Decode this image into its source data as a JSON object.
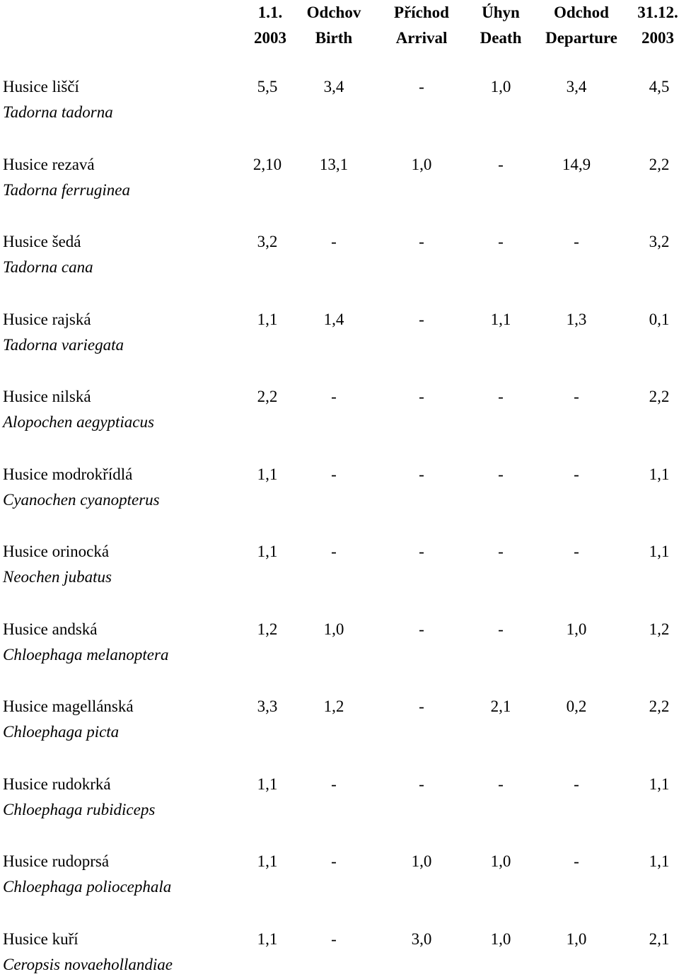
{
  "header": {
    "columns": [
      {
        "line1": "1.1.",
        "line2": "2003"
      },
      {
        "line1": "Odchov",
        "line2": "Birth"
      },
      {
        "line1": "Příchod",
        "line2": "Arrival"
      },
      {
        "line1": "Úhyn",
        "line2": "Death"
      },
      {
        "line1": "Odchod",
        "line2": "Departure"
      },
      {
        "line1": "31.12.",
        "line2": "2003"
      }
    ]
  },
  "rows": [
    {
      "name": "Husice liščí",
      "latin": "Tadorna tadorna",
      "values": [
        "5,5",
        "3,4",
        "-",
        "1,0",
        "3,4",
        "4,5"
      ]
    },
    {
      "name": "Husice rezavá",
      "latin": "Tadorna ferruginea",
      "values": [
        "2,10",
        "13,1",
        "1,0",
        "-",
        "14,9",
        "2,2"
      ]
    },
    {
      "name": "Husice šedá",
      "latin": "Tadorna cana",
      "values": [
        "3,2",
        "-",
        "-",
        "-",
        "-",
        "3,2"
      ]
    },
    {
      "name": "Husice rajská",
      "latin": "Tadorna variegata",
      "values": [
        "1,1",
        "1,4",
        "-",
        "1,1",
        "1,3",
        "0,1"
      ]
    },
    {
      "name": "Husice nilská",
      "latin": "Alopochen aegyptiacus",
      "values": [
        "2,2",
        "-",
        "-",
        "-",
        "-",
        "2,2"
      ]
    },
    {
      "name": "Husice modrokřídlá",
      "latin": "Cyanochen cyanopterus",
      "values": [
        "1,1",
        "-",
        "-",
        "-",
        "-",
        "1,1"
      ]
    },
    {
      "name": "Husice orinocká",
      "latin": "Neochen jubatus",
      "values": [
        "1,1",
        "-",
        "-",
        "-",
        "-",
        "1,1"
      ]
    },
    {
      "name": "Husice andská",
      "latin": "Chloephaga melanoptera",
      "values": [
        "1,2",
        "1,0",
        "-",
        "-",
        "1,0",
        "1,2"
      ]
    },
    {
      "name": "Husice magellánská",
      "latin": "Chloephaga picta",
      "values": [
        "3,3",
        "1,2",
        "-",
        "2,1",
        "0,2",
        "2,2"
      ]
    },
    {
      "name": "Husice rudokrká",
      "latin": "Chloephaga rubidiceps",
      "values": [
        "1,1",
        "-",
        "-",
        "-",
        "-",
        "1,1"
      ]
    },
    {
      "name": "Husice rudoprsá",
      "latin": "Chloephaga poliocephala",
      "values": [
        "1,1",
        "-",
        "1,0",
        "1,0",
        "-",
        "1,1"
      ]
    },
    {
      "name": "Husice kuří",
      "latin": "Ceropsis novaehollandiae",
      "values": [
        "1,1",
        "-",
        "3,0",
        "1,0",
        "1,0",
        "2,1"
      ]
    }
  ]
}
